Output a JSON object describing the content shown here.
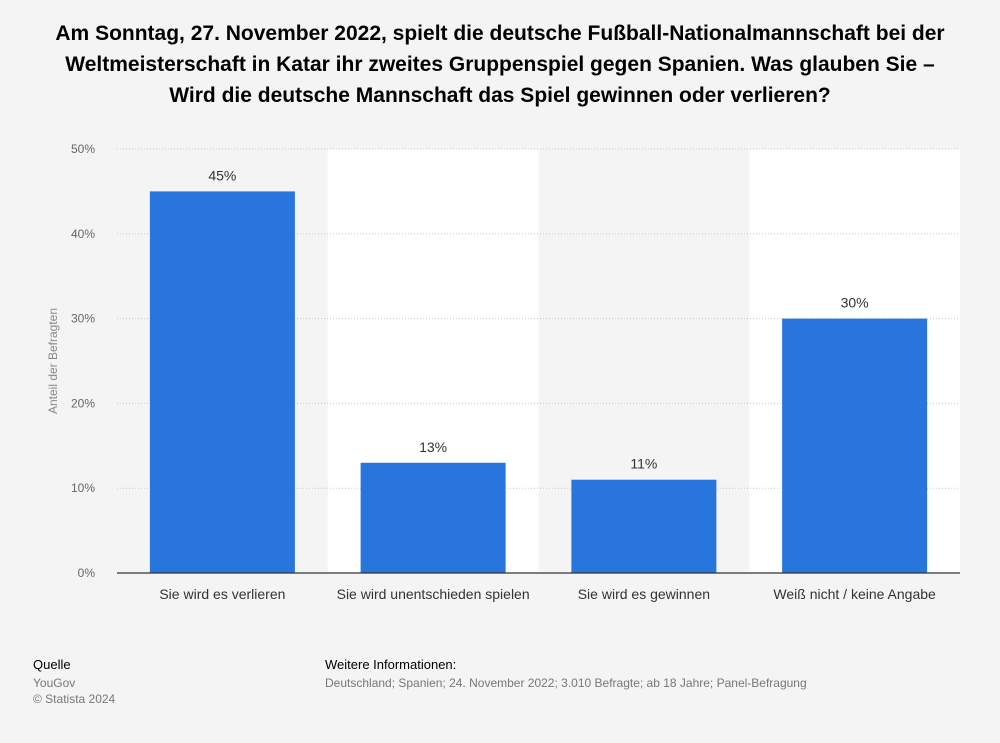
{
  "title": "Am Sonntag, 27. November 2022, spielt die deutsche Fußball-Nationalmannschaft bei der Weltmeisterschaft in Katar ihr zweites Gruppenspiel gegen Spanien. Was glauben Sie – Wird die deutsche Mannschaft das Spiel gewinnen oder verlieren?",
  "chart_data": {
    "type": "bar",
    "categories": [
      "Sie wird es verlieren",
      "Sie wird unentschieden spielen",
      "Sie wird es gewinnen",
      "Weiß nicht / keine Angabe"
    ],
    "values": [
      45,
      13,
      11,
      30
    ],
    "value_labels": [
      "45%",
      "13%",
      "11%",
      "30%"
    ],
    "ylabel": "Anteil der Befragten",
    "ylim": [
      0,
      50
    ],
    "yticks": [
      0,
      10,
      20,
      30,
      40,
      50
    ],
    "ytick_labels": [
      "0%",
      "10%",
      "20%",
      "30%",
      "40%",
      "50%"
    ],
    "grid": true,
    "bar_color": "#2876dd"
  },
  "footer": {
    "source_heading": "Quelle",
    "source": "YouGov",
    "copyright": "© Statista 2024",
    "info_heading": "Weitere Informationen:",
    "info": "Deutschland; Spanien; 24. November 2022; 3.010 Befragte; ab 18 Jahre; Panel-Befragung"
  }
}
